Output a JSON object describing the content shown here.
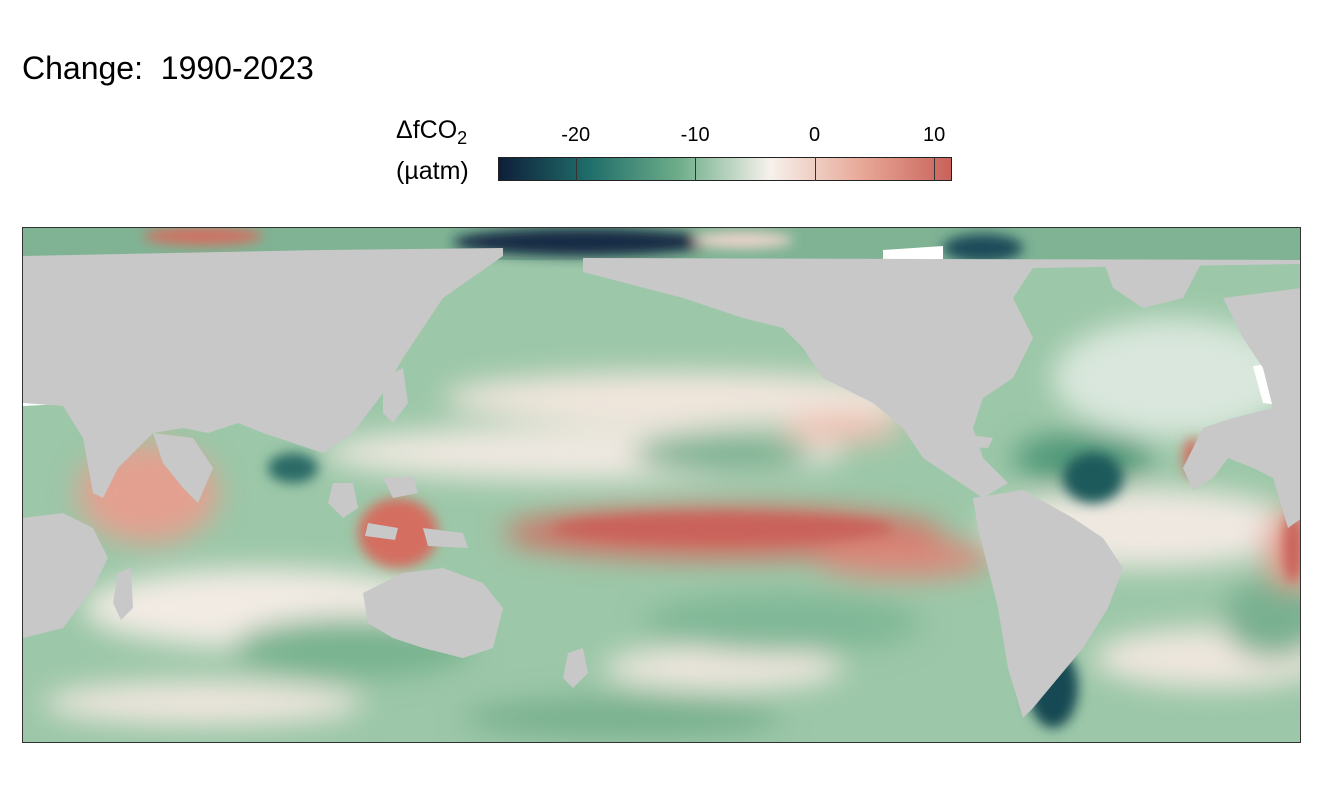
{
  "title": "Change:  1990-2023",
  "legend": {
    "label_main": "ΔfCO",
    "label_sub": "2",
    "label_unit": "(µatm)",
    "ticks": [
      "-20",
      "-10",
      "0",
      "10"
    ],
    "tick_values": [
      -20,
      -10,
      0,
      10
    ],
    "range": [
      -26.5,
      11.5
    ],
    "colors": [
      "#0f1e3a",
      "#1f6e6a",
      "#6fae8a",
      "#f6f1ec",
      "#e8a998",
      "#c9625a"
    ]
  },
  "map": {
    "land_color": "#c8c8c8",
    "missing_color": "#ffffff",
    "projection": "Pacific-centered equirectangular"
  }
}
